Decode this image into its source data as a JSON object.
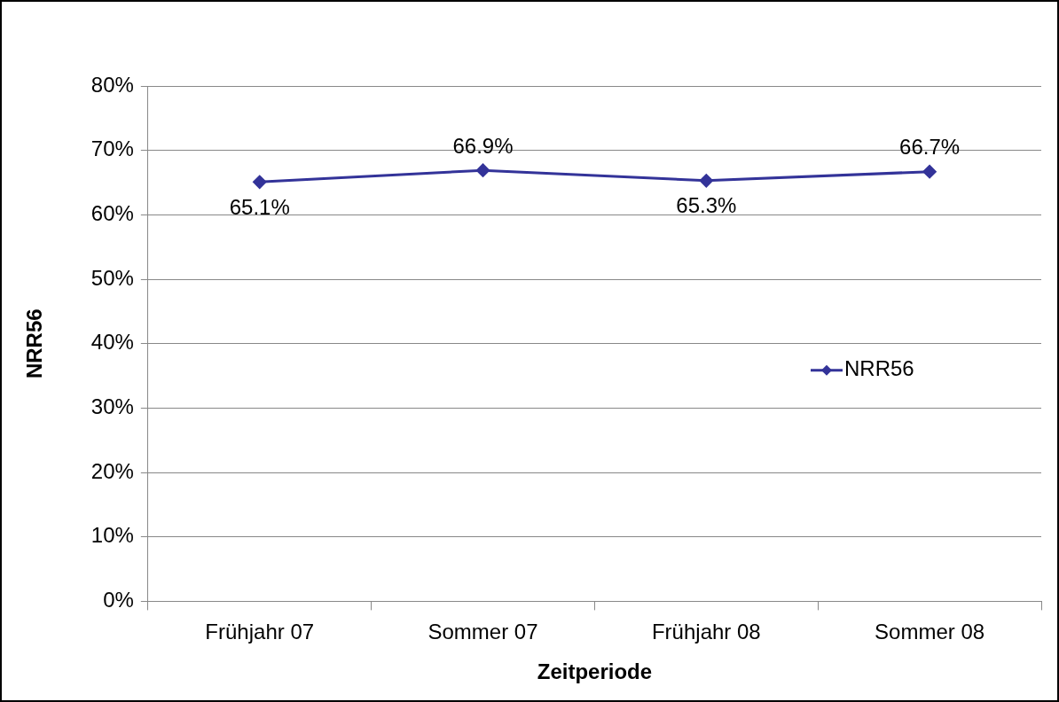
{
  "chart_data": {
    "type": "line",
    "xlabel": "Zeitperiode",
    "ylabel": "NRR56",
    "categories": [
      "Frühjahr 07",
      "Sommer 07",
      "Frühjahr 08",
      "Sommer 08"
    ],
    "series": [
      {
        "name": "NRR56",
        "color": "#333399",
        "values": [
          65.1,
          66.9,
          65.3,
          66.7
        ],
        "value_labels": [
          "65.1%",
          "66.9%",
          "65.3%",
          "66.7%"
        ]
      }
    ],
    "ylim": [
      0,
      80
    ],
    "yticks": [
      {
        "value": 0,
        "label": "0%"
      },
      {
        "value": 10,
        "label": "10%"
      },
      {
        "value": 20,
        "label": "20%"
      },
      {
        "value": 30,
        "label": "30%"
      },
      {
        "value": 40,
        "label": "40%"
      },
      {
        "value": 50,
        "label": "50%"
      },
      {
        "value": 60,
        "label": "60%"
      },
      {
        "value": 70,
        "label": "70%"
      },
      {
        "value": 80,
        "label": "80%"
      }
    ],
    "grid": "y",
    "legend": "right",
    "marker": "diamond",
    "line_style": "solid"
  }
}
